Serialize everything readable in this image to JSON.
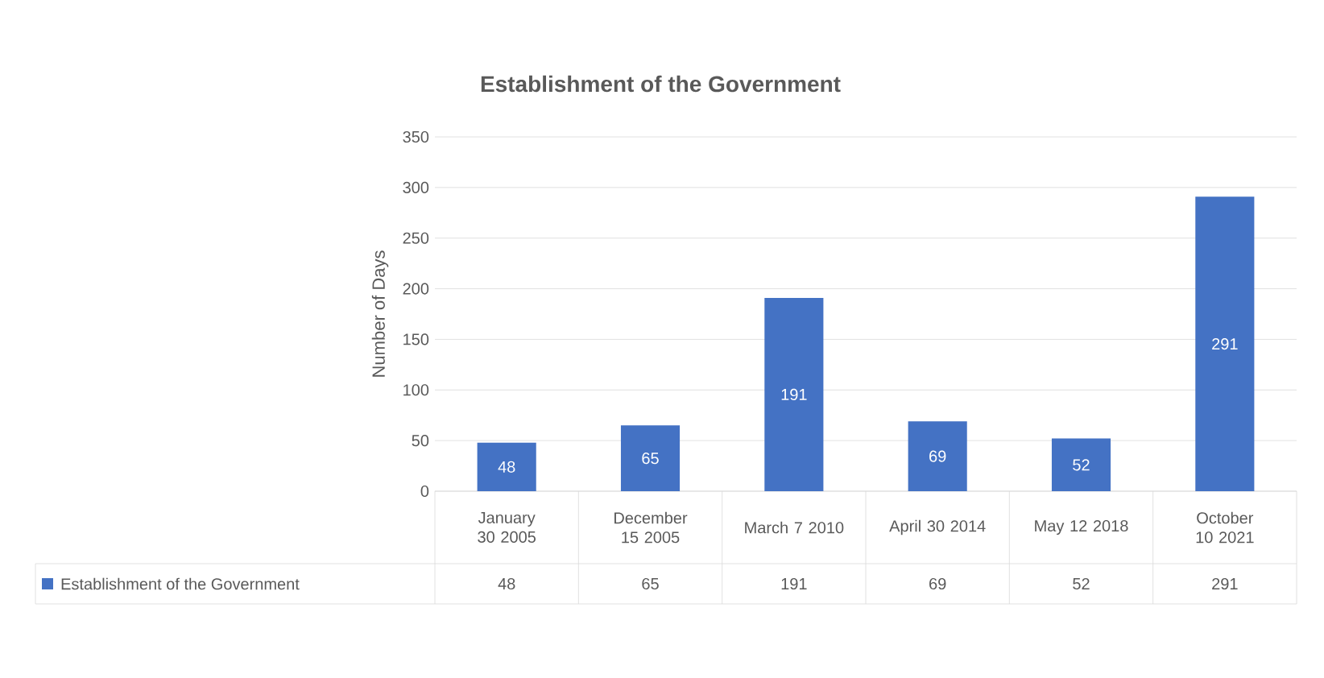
{
  "chart_data": {
    "type": "bar",
    "title": "Establishment of the Government",
    "ylabel": "Number of Days",
    "categories": [
      "January 30 2005",
      "December 15 2005",
      "March 7 2010",
      "April 30 2014",
      "May 12 2018",
      "October 10 2021"
    ],
    "series": [
      {
        "name": "Establishment of the Government",
        "color": "#4472c4",
        "values": [
          48,
          65,
          191,
          69,
          52,
          291
        ],
        "value_labels": [
          "48",
          "65",
          "191",
          "69",
          "52",
          "291"
        ]
      }
    ],
    "ylim": [
      0,
      350
    ],
    "yticks": [
      0,
      50,
      100,
      150,
      200,
      250,
      300,
      350
    ],
    "grid": "y"
  }
}
